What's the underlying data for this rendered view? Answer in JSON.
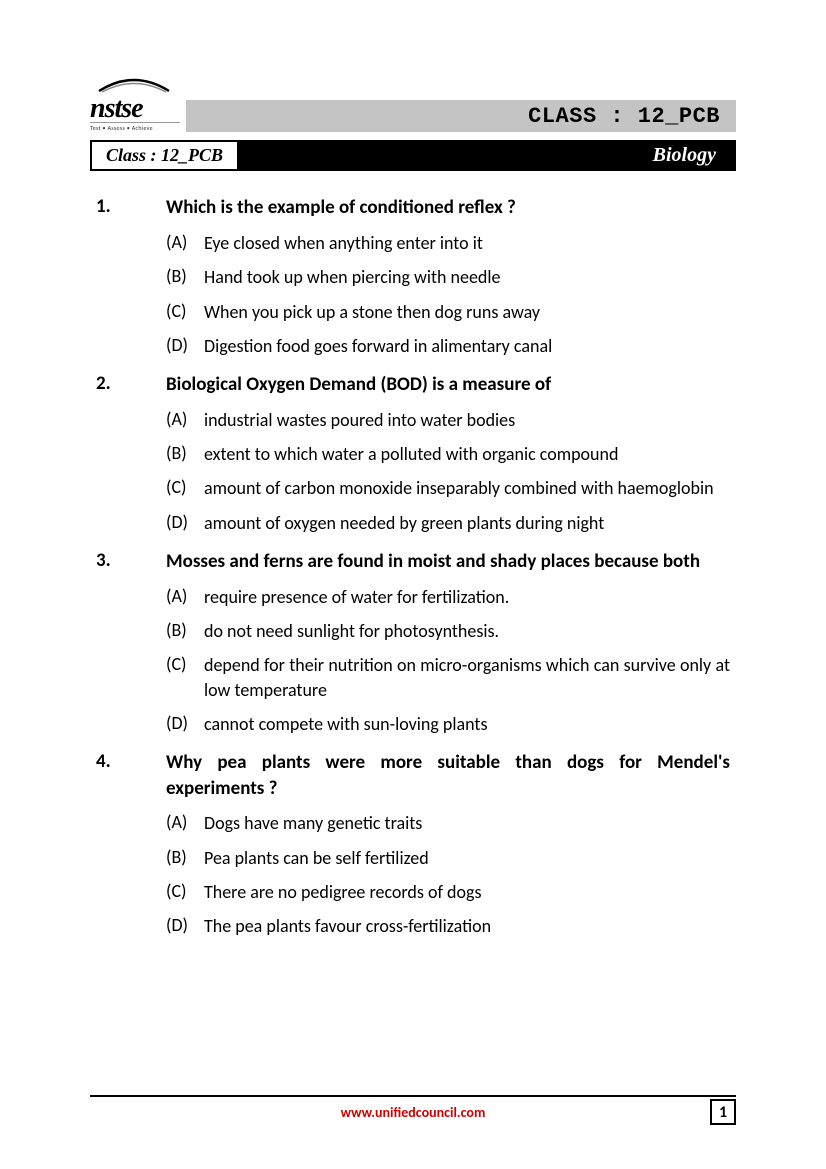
{
  "header": {
    "logo_name": "nstse",
    "logo_tagline": "Test • Assess • Achieve",
    "class_label": "CLASS : 12_PCB"
  },
  "subheader": {
    "class_text": "Class : 12_PCB",
    "subject": "Biology"
  },
  "questions": [
    {
      "num": "1.",
      "text": "Which is the example of conditioned reflex ?",
      "options": [
        {
          "label": "(A)",
          "text": "Eye closed when anything enter into it"
        },
        {
          "label": "(B)",
          "text": "Hand took up when piercing with needle"
        },
        {
          "label": "(C)",
          "text": "When you pick up a stone then dog runs away"
        },
        {
          "label": "(D)",
          "text": "Digestion food goes forward in alimentary canal"
        }
      ]
    },
    {
      "num": "2.",
      "text": "Biological Oxygen Demand (BOD) is a measure of",
      "options": [
        {
          "label": "(A)",
          "text": "industrial wastes poured into water bodies"
        },
        {
          "label": "(B)",
          "text": "extent to which water a polluted with organic compound"
        },
        {
          "label": "(C)",
          "text": "amount of carbon monoxide inseparably combined with haemoglobin"
        },
        {
          "label": "(D)",
          "text": "amount of oxygen needed by green plants during night"
        }
      ]
    },
    {
      "num": "3.",
      "text": "Mosses and ferns are found in moist and shady places because both",
      "options": [
        {
          "label": "(A)",
          "text": "require presence of water for fertilization."
        },
        {
          "label": "(B)",
          "text": "do not need sunlight for photosynthesis."
        },
        {
          "label": "(C)",
          "text": "depend for their nutrition on micro-organisms which can survive only at low temperature"
        },
        {
          "label": "(D)",
          "text": "cannot compete with sun-loving plants"
        }
      ]
    },
    {
      "num": "4.",
      "text": "Why pea plants were more suitable than dogs for Mendel's experiments ?",
      "options": [
        {
          "label": "(A)",
          "text": "Dogs have many genetic traits"
        },
        {
          "label": "(B)",
          "text": "Pea plants can be self fertilized"
        },
        {
          "label": "(C)",
          "text": "There are no pedigree records of dogs"
        },
        {
          "label": "(D)",
          "text": "The pea plants favour cross-fertilization"
        }
      ]
    }
  ],
  "footer": {
    "page_num": "1",
    "url": "www.unifiedcouncil.com"
  },
  "colors": {
    "banner_bg": "#c4c4c4",
    "black": "#000000",
    "white": "#ffffff",
    "url_red": "#cc0000"
  }
}
